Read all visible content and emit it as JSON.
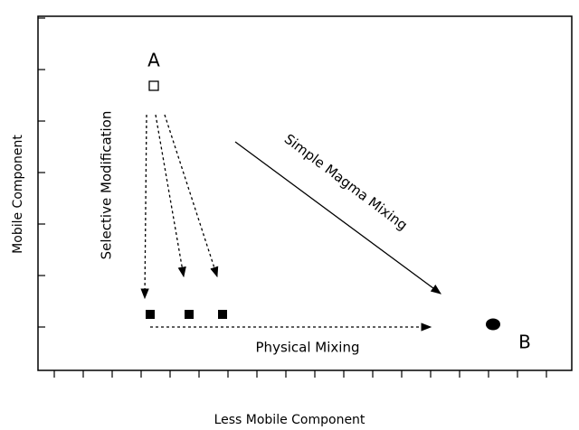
{
  "x_axis_label": "Less Mobile Component",
  "y_axis_label": "Mobile Component",
  "points": {
    "a": "A",
    "b": "B"
  },
  "annotations": {
    "selective": "Selective Modification",
    "simple": "Simple Magma Mixing",
    "physical": "Physical Mixing"
  }
}
